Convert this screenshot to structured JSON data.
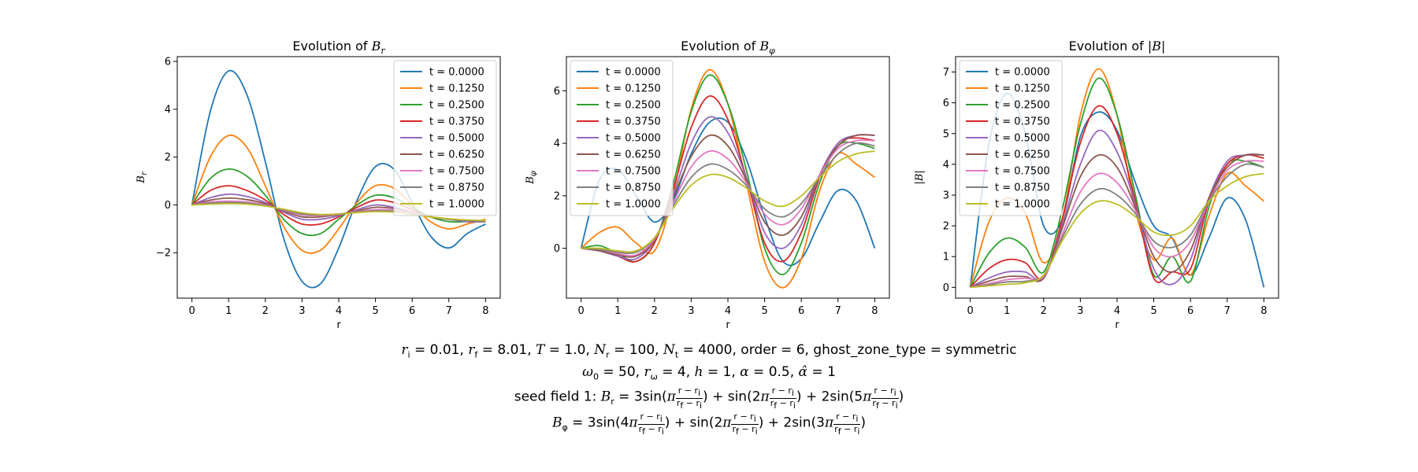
{
  "chart_data": [
    {
      "type": "line",
      "title": "Evolution of B_r",
      "xlabel": "r",
      "ylabel": "B_r",
      "xlim": [
        -0.4,
        8.4
      ],
      "ylim": [
        -3.9,
        6.2
      ],
      "xticks": [
        "0",
        "1",
        "2",
        "3",
        "4",
        "5",
        "6",
        "7",
        "8"
      ],
      "yticks": [
        "−2",
        "0",
        "2",
        "4",
        "6"
      ],
      "grid": false,
      "legend_position": "upper right",
      "x": [
        0,
        0.5,
        1,
        1.5,
        2,
        2.5,
        3,
        3.5,
        4,
        4.5,
        5,
        5.5,
        6,
        6.5,
        7,
        7.5,
        8
      ],
      "series": [
        {
          "name": "t = 0.0000",
          "color": "#1f77b4",
          "values": [
            0,
            3.9,
            5.6,
            4.6,
            1.8,
            -1.4,
            -3.2,
            -3.3,
            -1.8,
            0.2,
            1.6,
            1.5,
            0.1,
            -1.3,
            -1.8,
            -1.2,
            -0.8
          ]
        },
        {
          "name": "t = 0.1250",
          "color": "#ff7f0e",
          "values": [
            0,
            2.0,
            2.9,
            2.4,
            0.8,
            -0.9,
            -1.9,
            -1.9,
            -1.0,
            0.1,
            0.8,
            0.7,
            0.0,
            -0.7,
            -1.0,
            -0.8,
            -0.6
          ]
        },
        {
          "name": "t = 0.2500",
          "color": "#2ca02c",
          "values": [
            0,
            1.1,
            1.5,
            1.2,
            0.4,
            -0.6,
            -1.2,
            -1.2,
            -0.6,
            0.0,
            0.4,
            0.3,
            -0.1,
            -0.5,
            -0.7,
            -0.7,
            -0.7
          ]
        },
        {
          "name": "t = 0.3750",
          "color": "#d62728",
          "values": [
            0,
            0.6,
            0.8,
            0.6,
            0.2,
            -0.4,
            -0.8,
            -0.8,
            -0.5,
            -0.1,
            0.2,
            0.1,
            -0.2,
            -0.5,
            -0.6,
            -0.7,
            -0.7
          ]
        },
        {
          "name": "t = 0.5000",
          "color": "#9467bd",
          "values": [
            0,
            0.3,
            0.45,
            0.35,
            0.1,
            -0.3,
            -0.6,
            -0.6,
            -0.45,
            -0.2,
            0.0,
            -0.1,
            -0.3,
            -0.5,
            -0.6,
            -0.7,
            -0.7
          ]
        },
        {
          "name": "t = 0.6250",
          "color": "#8c564b",
          "values": [
            0,
            0.2,
            0.28,
            0.22,
            0.05,
            -0.25,
            -0.5,
            -0.5,
            -0.4,
            -0.25,
            -0.1,
            -0.15,
            -0.3,
            -0.5,
            -0.6,
            -0.65,
            -0.7
          ]
        },
        {
          "name": "t = 0.7500",
          "color": "#e377c2",
          "values": [
            0,
            0.12,
            0.16,
            0.12,
            0.0,
            -0.22,
            -0.42,
            -0.45,
            -0.38,
            -0.28,
            -0.2,
            -0.22,
            -0.35,
            -0.5,
            -0.6,
            -0.65,
            -0.7
          ]
        },
        {
          "name": "t = 0.8750",
          "color": "#7f7f7f",
          "values": [
            0,
            0.07,
            0.1,
            0.07,
            -0.03,
            -0.2,
            -0.38,
            -0.42,
            -0.38,
            -0.3,
            -0.25,
            -0.27,
            -0.38,
            -0.5,
            -0.6,
            -0.65,
            -0.7
          ]
        },
        {
          "name": "t = 1.0000",
          "color": "#bcbd22",
          "values": [
            0,
            0.03,
            0.05,
            0.03,
            -0.05,
            -0.18,
            -0.33,
            -0.4,
            -0.38,
            -0.32,
            -0.28,
            -0.3,
            -0.4,
            -0.5,
            -0.58,
            -0.63,
            -0.65
          ]
        }
      ]
    },
    {
      "type": "line",
      "title": "Evolution of B_φ",
      "xlabel": "r",
      "ylabel": "B_φ",
      "xlim": [
        -0.4,
        8.4
      ],
      "ylim": [
        -1.9,
        7.3
      ],
      "xticks": [
        "0",
        "1",
        "2",
        "3",
        "4",
        "5",
        "6",
        "7",
        "8"
      ],
      "yticks": [
        "0",
        "2",
        "4",
        "6"
      ],
      "grid": false,
      "legend_position": "upper left",
      "x": [
        0,
        0.5,
        1,
        1.5,
        2,
        2.5,
        3,
        3.5,
        4,
        4.5,
        5,
        5.5,
        6,
        6.5,
        7,
        7.5,
        8
      ],
      "series": [
        {
          "name": "t = 0.0000",
          "color": "#1f77b4",
          "values": [
            0,
            2.6,
            3.0,
            2.0,
            1.0,
            1.8,
            3.6,
            4.8,
            4.8,
            3.4,
            1.2,
            -0.5,
            -0.4,
            1.0,
            2.2,
            1.8,
            0
          ]
        },
        {
          "name": "t = 0.1250",
          "color": "#ff7f0e",
          "values": [
            0,
            0.6,
            0.8,
            0.2,
            -0.1,
            2.0,
            5.3,
            6.8,
            5.5,
            2.5,
            -0.5,
            -1.5,
            -0.4,
            2.2,
            3.6,
            3.2,
            2.7
          ]
        },
        {
          "name": "t = 0.2500",
          "color": "#2ca02c",
          "values": [
            0,
            0.1,
            -0.2,
            -0.5,
            0.2,
            2.4,
            5.2,
            6.6,
            5.5,
            3.0,
            0.0,
            -1.0,
            0.2,
            2.5,
            3.9,
            4.0,
            3.8
          ]
        },
        {
          "name": "t = 0.3750",
          "color": "#d62728",
          "values": [
            0,
            -0.05,
            -0.3,
            -0.5,
            0.2,
            2.2,
            4.6,
            5.8,
            4.9,
            2.7,
            0.2,
            -0.5,
            0.6,
            2.7,
            4.0,
            4.2,
            4.1
          ]
        },
        {
          "name": "t = 0.5000",
          "color": "#9467bd",
          "values": [
            0,
            -0.1,
            -0.3,
            -0.4,
            0.3,
            2.0,
            4.0,
            5.0,
            4.4,
            2.7,
            0.6,
            0.0,
            0.9,
            2.8,
            4.0,
            4.3,
            4.3
          ]
        },
        {
          "name": "t = 0.6250",
          "color": "#8c564b",
          "values": [
            0,
            -0.1,
            -0.25,
            -0.3,
            0.3,
            1.9,
            3.5,
            4.3,
            3.9,
            2.6,
            1.0,
            0.5,
            1.2,
            2.8,
            3.9,
            4.3,
            4.3
          ]
        },
        {
          "name": "t = 0.7500",
          "color": "#e377c2",
          "values": [
            0,
            -0.05,
            -0.2,
            -0.25,
            0.35,
            1.7,
            3.1,
            3.7,
            3.4,
            2.5,
            1.3,
            0.9,
            1.5,
            2.8,
            3.8,
            4.1,
            4.1
          ]
        },
        {
          "name": "t = 0.8750",
          "color": "#7f7f7f",
          "values": [
            0,
            -0.05,
            -0.15,
            -0.15,
            0.4,
            1.6,
            2.7,
            3.2,
            3.0,
            2.4,
            1.5,
            1.2,
            1.7,
            2.7,
            3.6,
            4.0,
            3.9
          ]
        },
        {
          "name": "t = 1.0000",
          "color": "#bcbd22",
          "values": [
            0,
            0.0,
            -0.1,
            -0.1,
            0.4,
            1.5,
            2.4,
            2.8,
            2.7,
            2.3,
            1.8,
            1.6,
            2.0,
            2.7,
            3.3,
            3.6,
            3.7
          ]
        }
      ]
    },
    {
      "type": "line",
      "title": "Evolution of |B|",
      "xlabel": "r",
      "ylabel": "|B|",
      "xlim": [
        -0.4,
        8.4
      ],
      "ylim": [
        -0.35,
        7.5
      ],
      "xticks": [
        "0",
        "1",
        "2",
        "3",
        "4",
        "5",
        "6",
        "7",
        "8"
      ],
      "yticks": [
        "0",
        "1",
        "2",
        "3",
        "4",
        "5",
        "6",
        "7"
      ],
      "grid": false,
      "legend_position": "upper left",
      "x": [
        0,
        0.5,
        1,
        1.5,
        2,
        2.5,
        3,
        3.5,
        4,
        4.5,
        5,
        5.5,
        6,
        6.5,
        7,
        7.5,
        8
      ],
      "series": [
        {
          "name": "t = 0.0000",
          "color": "#1f77b4",
          "values": [
            0,
            4.6,
            6.3,
            5.0,
            2.0,
            2.2,
            4.9,
            5.7,
            5.1,
            3.4,
            2.0,
            1.6,
            0.4,
            1.6,
            2.9,
            2.2,
            0
          ]
        },
        {
          "name": "t = 0.1250",
          "color": "#ff7f0e",
          "values": [
            0,
            2.1,
            2.9,
            2.4,
            0.8,
            2.1,
            5.6,
            7.1,
            5.6,
            2.5,
            0.9,
            1.6,
            0.4,
            2.3,
            3.7,
            3.3,
            2.8
          ]
        },
        {
          "name": "t = 0.2500",
          "color": "#2ca02c",
          "values": [
            0,
            1.1,
            1.6,
            1.3,
            0.5,
            2.5,
            5.3,
            6.8,
            5.6,
            3.0,
            0.4,
            1.0,
            0.2,
            2.6,
            4.0,
            4.1,
            3.9
          ]
        },
        {
          "name": "t = 0.3750",
          "color": "#d62728",
          "values": [
            0,
            0.6,
            0.9,
            0.8,
            0.3,
            2.2,
            4.7,
            5.9,
            5.0,
            2.8,
            0.3,
            0.5,
            0.6,
            2.8,
            4.0,
            4.3,
            4.2
          ]
        },
        {
          "name": "t = 0.5000",
          "color": "#9467bd",
          "values": [
            0,
            0.3,
            0.5,
            0.5,
            0.3,
            2.0,
            4.0,
            5.1,
            4.4,
            2.7,
            0.6,
            0.1,
            0.9,
            2.9,
            4.1,
            4.3,
            4.3
          ]
        },
        {
          "name": "t = 0.6250",
          "color": "#8c564b",
          "values": [
            0,
            0.2,
            0.35,
            0.35,
            0.3,
            1.9,
            3.6,
            4.3,
            3.9,
            2.6,
            1.0,
            0.5,
            1.2,
            2.9,
            3.9,
            4.3,
            4.3
          ]
        },
        {
          "name": "t = 0.7500",
          "color": "#e377c2",
          "values": [
            0,
            0.12,
            0.25,
            0.3,
            0.35,
            1.7,
            3.1,
            3.7,
            3.4,
            2.5,
            1.3,
            1.0,
            1.5,
            2.8,
            3.8,
            4.1,
            4.1
          ]
        },
        {
          "name": "t = 0.8750",
          "color": "#7f7f7f",
          "values": [
            0,
            0.08,
            0.18,
            0.2,
            0.4,
            1.6,
            2.7,
            3.2,
            3.0,
            2.4,
            1.5,
            1.3,
            1.7,
            2.8,
            3.6,
            4.0,
            3.9
          ]
        },
        {
          "name": "t = 1.0000",
          "color": "#bcbd22",
          "values": [
            0,
            0.05,
            0.1,
            0.15,
            0.4,
            1.5,
            2.4,
            2.8,
            2.7,
            2.3,
            1.8,
            1.7,
            2.0,
            2.8,
            3.3,
            3.6,
            3.7
          ]
        }
      ]
    }
  ],
  "caption": {
    "line1": "r_i = 0.01, r_f = 8.01, T = 1.0, N_r = 100, N_t = 4000, order = 6, ghost_zone_type = symmetric",
    "line2": "ω_0 = 50, r_ω = 4, h = 1, α = 0.5, α̂ = 1",
    "line3": "seed field 1: B_r = 3sin(π(r−r_i)/(r_f−r_i)) + sin(2π(r−r_i)/(r_f−r_i)) + 2sin(5π(r−r_i)/(r_f−r_i))",
    "line4": "B_φ = 3sin(4π(r−r_i)/(r_f−r_i)) + sin(2π(r−r_i)/(r_f−r_i)) + 2sin(3π(r−r_i)/(r_f−r_i))"
  }
}
